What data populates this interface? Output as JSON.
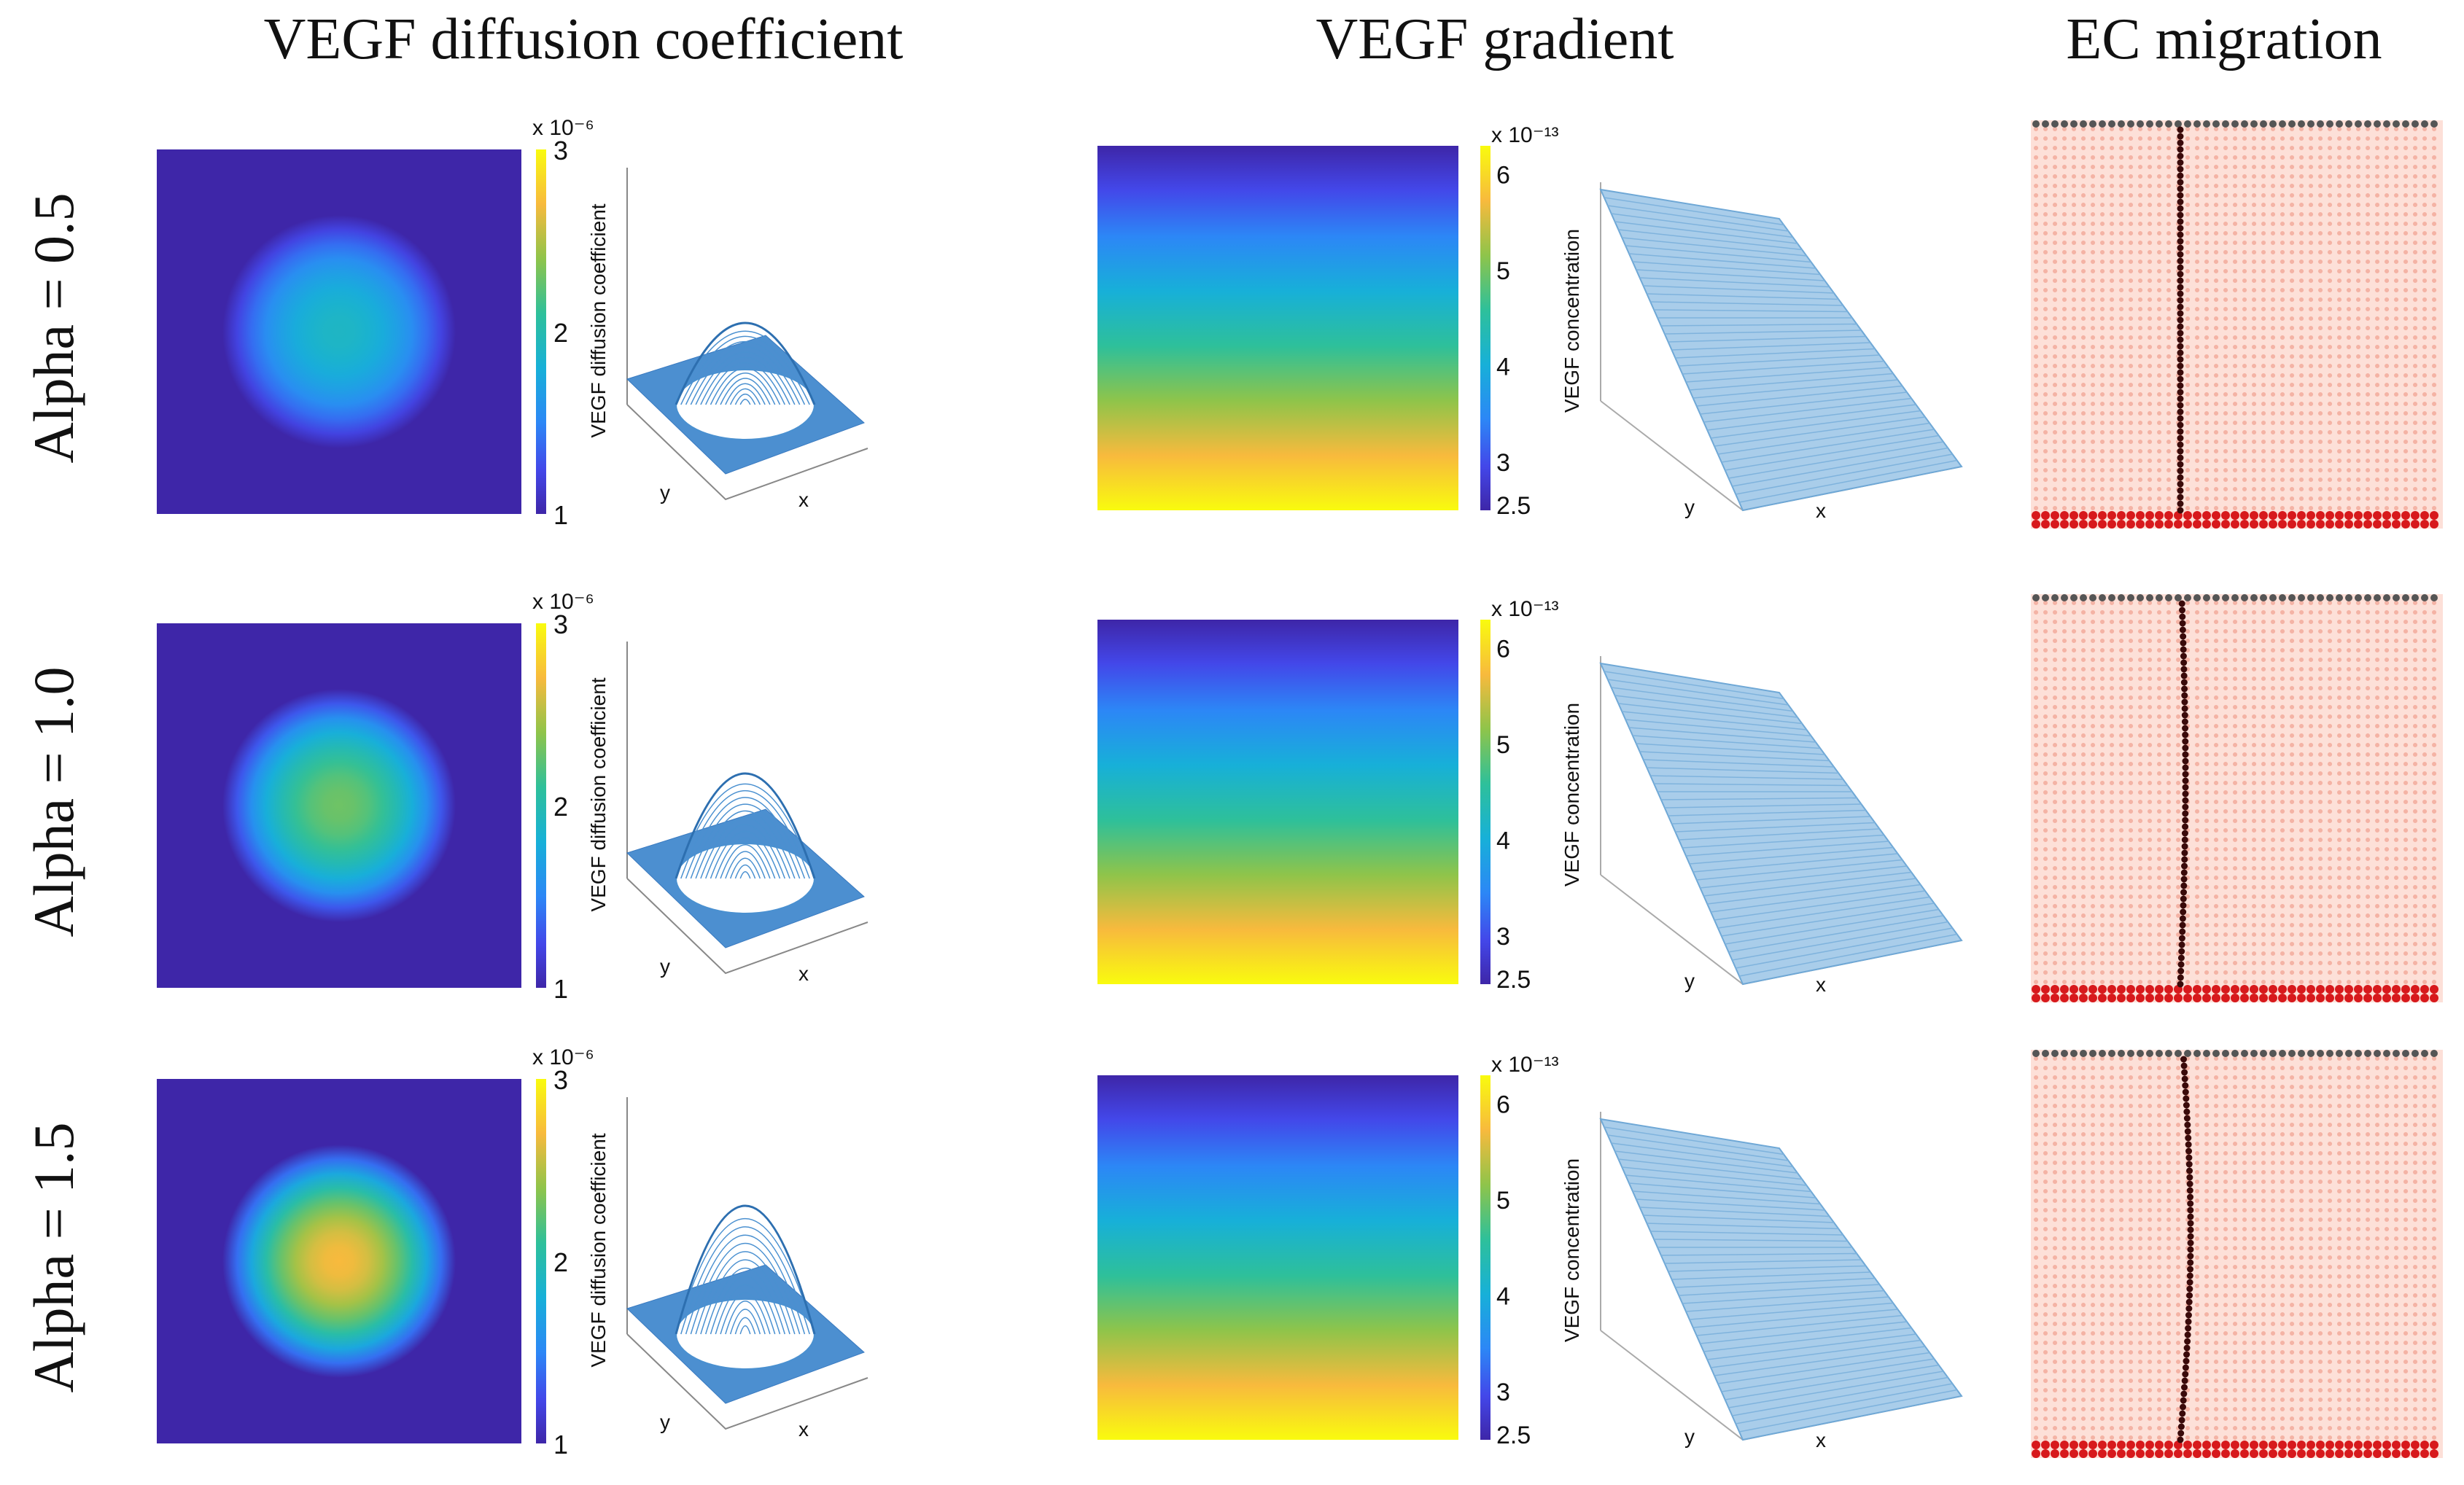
{
  "columns": [
    {
      "id": "diffusion",
      "label": "VEGF diffusion coefficient"
    },
    {
      "id": "gradient",
      "label": "VEGF gradient"
    },
    {
      "id": "migration",
      "label": "EC migration"
    }
  ],
  "rows": [
    {
      "id": "a05",
      "label": "Alpha = 0.5",
      "alpha": 0.5,
      "peak_diffusion": 1.9,
      "vessel_curvature": 0.0
    },
    {
      "id": "a10",
      "label": "Alpha = 1.0",
      "alpha": 1.0,
      "peak_diffusion": 2.3,
      "vessel_curvature": 0.5
    },
    {
      "id": "a15",
      "label": "Alpha = 1.5",
      "alpha": 1.5,
      "peak_diffusion": 2.7,
      "vessel_curvature": 1.0
    }
  ],
  "diffusion_colorbar": {
    "exponent_label": "x 10⁻⁶",
    "ticks": [
      "3",
      "2",
      "1"
    ],
    "min": 1,
    "max": 3
  },
  "gradient_colorbar": {
    "exponent_label": "x 10⁻¹³",
    "ticks": [
      "6",
      "5",
      "4",
      "3",
      "2.5"
    ],
    "min": 2.5,
    "max": 6.3
  },
  "surface_labels": {
    "diffusion_z": "VEGF diffusion coefficient",
    "gradient_z": "VEGF concentration",
    "x": "x",
    "y": "y"
  },
  "colors": {
    "low": "#3e26a8",
    "high": "#f9fb0e",
    "migration_bg": "#fde0d8",
    "tip_cell": "#555555",
    "stalk_cell": "#d7191c",
    "vessel": "#3a0a0a",
    "mesh": "#4a90d0"
  }
}
